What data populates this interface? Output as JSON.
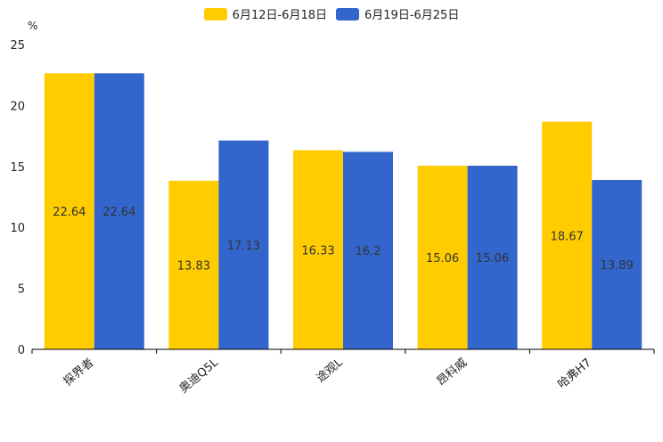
{
  "chart_data": {
    "type": "bar",
    "title": "",
    "ylabel": "%",
    "xlabel": "",
    "ylim": [
      0,
      25
    ],
    "yticks": [
      0,
      5,
      10,
      15,
      20,
      25
    ],
    "categories": [
      "探界者",
      "奥迪Q5L",
      "途观L",
      "昂科威",
      "哈弗H7"
    ],
    "series": [
      {
        "name": "6月12日-6月18日",
        "color": "#FFCC00",
        "values": [
          22.64,
          13.83,
          16.33,
          15.06,
          18.67
        ]
      },
      {
        "name": "6月19日-6月25日",
        "color": "#3366CC",
        "values": [
          22.64,
          17.13,
          16.2,
          15.06,
          13.89
        ]
      }
    ],
    "legend_position": "top"
  }
}
